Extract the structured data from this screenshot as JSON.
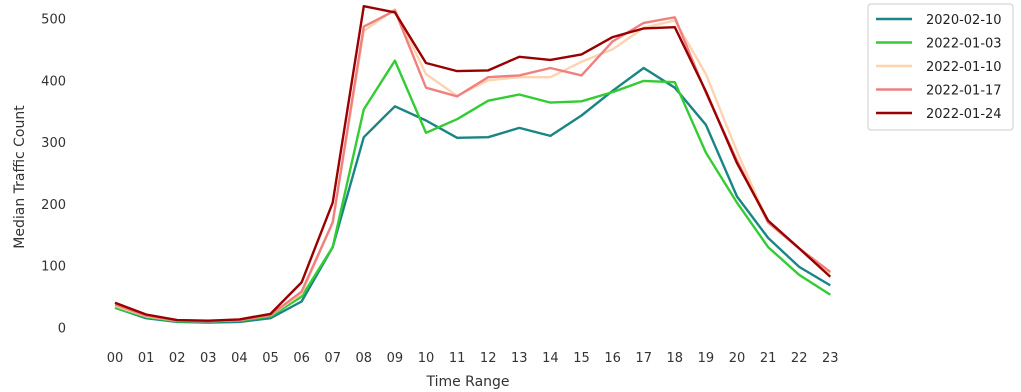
{
  "chart_data": {
    "type": "line",
    "xlabel": "Time Range",
    "ylabel": "Median Traffic Count",
    "categories": [
      "00",
      "01",
      "02",
      "03",
      "04",
      "05",
      "06",
      "07",
      "08",
      "09",
      "10",
      "11",
      "12",
      "13",
      "14",
      "15",
      "16",
      "17",
      "18",
      "19",
      "20",
      "21",
      "22",
      "23"
    ],
    "yticks": [
      0,
      100,
      200,
      300,
      400,
      500
    ],
    "ylim": [
      -30,
      530
    ],
    "grid": false,
    "legend_position": "outside-top-right",
    "series": [
      {
        "name": "2020-02-10",
        "color": "#1a8585",
        "values": [
          32,
          15,
          9,
          8,
          9,
          15,
          42,
          130,
          308,
          358,
          335,
          307,
          308,
          323,
          310,
          343,
          383,
          420,
          388,
          328,
          212,
          145,
          98,
          68
        ]
      },
      {
        "name": "2022-01-03",
        "color": "#33cc33",
        "values": [
          32,
          17,
          10,
          10,
          11,
          18,
          50,
          130,
          353,
          432,
          315,
          337,
          367,
          377,
          364,
          366,
          381,
          399,
          397,
          283,
          202,
          130,
          85,
          53
        ]
      },
      {
        "name": "2022-01-10",
        "color": "#fdd3b0",
        "values": [
          35,
          18,
          11,
          10,
          12,
          20,
          55,
          170,
          480,
          515,
          410,
          375,
          400,
          405,
          405,
          430,
          450,
          485,
          497,
          410,
          285,
          170,
          128,
          88
        ]
      },
      {
        "name": "2022-01-17",
        "color": "#f08080",
        "values": [
          37,
          19,
          11,
          10,
          12,
          20,
          58,
          170,
          487,
          513,
          388,
          374,
          405,
          408,
          420,
          408,
          463,
          493,
          502,
          380,
          270,
          170,
          128,
          90
        ]
      },
      {
        "name": "2022-01-24",
        "color": "#990000",
        "values": [
          40,
          21,
          12,
          11,
          13,
          22,
          73,
          202,
          520,
          510,
          428,
          415,
          416,
          438,
          433,
          442,
          470,
          484,
          486,
          382,
          266,
          173,
          128,
          82
        ]
      }
    ]
  }
}
